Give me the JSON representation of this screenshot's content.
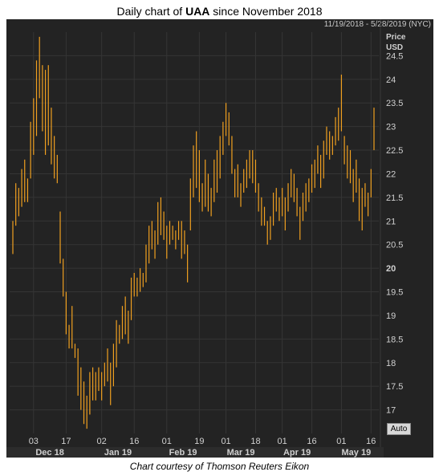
{
  "title": {
    "prefix": "Daily chart of ",
    "ticker": "UAA",
    "suffix": " since November 2018"
  },
  "date_range": "11/19/2018 - 5/28/2019 (NYC)",
  "credit": "Chart courtesy of Thomson Reuters Eikon",
  "auto_label": "Auto",
  "colors": {
    "background": "#232323",
    "bars": "#f0a020",
    "grid": "#353535",
    "axis_text": "#d0d0d0"
  },
  "chart_data": {
    "type": "bar",
    "subtype": "ohlc",
    "ylabel": "Price USD",
    "ylim": [
      16.5,
      25.0
    ],
    "yticks": [
      17,
      17.5,
      18,
      18.5,
      19,
      19.5,
      20,
      20.5,
      21,
      21.5,
      22,
      22.5,
      23,
      23.5,
      24,
      24.5
    ],
    "y_emphasized_tick": 20,
    "x_tick_labels": [
      "03",
      "17",
      "02",
      "16",
      "01",
      "19",
      "01",
      "18",
      "01",
      "16",
      "01",
      "16"
    ],
    "x_month_labels": [
      "Dec 18",
      "Jan 19",
      "Feb 19",
      "Mar 19",
      "Apr 19",
      "May 19"
    ],
    "grid": true,
    "series": [
      {
        "values": [
          [
            21.0,
            20.3
          ],
          [
            21.8,
            20.9
          ],
          [
            21.7,
            21.1
          ],
          [
            22.1,
            21.3
          ],
          [
            22.3,
            21.4
          ],
          [
            21.9,
            21.4
          ],
          [
            23.1,
            21.9
          ],
          [
            23.6,
            22.4
          ],
          [
            24.4,
            22.8
          ],
          [
            24.9,
            23.6
          ],
          [
            24.3,
            22.9
          ],
          [
            24.2,
            22.4
          ],
          [
            24.3,
            22.6
          ],
          [
            23.4,
            22.2
          ],
          [
            22.8,
            21.9
          ],
          [
            22.4,
            21.8
          ],
          [
            21.2,
            20.1
          ],
          [
            20.2,
            19.4
          ],
          [
            19.5,
            18.6
          ],
          [
            18.8,
            18.3
          ],
          [
            19.2,
            18.3
          ],
          [
            18.4,
            18.1
          ],
          [
            18.3,
            17.3
          ],
          [
            17.9,
            17.0
          ],
          [
            17.6,
            16.7
          ],
          [
            17.3,
            16.6
          ],
          [
            17.8,
            16.9
          ],
          [
            17.9,
            17.2
          ],
          [
            17.8,
            17.2
          ],
          [
            17.9,
            17.4
          ],
          [
            17.8,
            17.2
          ],
          [
            18.0,
            17.5
          ],
          [
            18.3,
            17.6
          ],
          [
            18.0,
            17.1
          ],
          [
            18.4,
            17.5
          ],
          [
            18.9,
            17.9
          ],
          [
            18.8,
            18.4
          ],
          [
            19.2,
            18.5
          ],
          [
            19.4,
            18.6
          ],
          [
            19.1,
            18.4
          ],
          [
            19.8,
            18.9
          ],
          [
            19.9,
            19.4
          ],
          [
            19.8,
            19.4
          ],
          [
            20.0,
            19.5
          ],
          [
            19.9,
            19.6
          ],
          [
            20.5,
            19.7
          ],
          [
            20.9,
            20.1
          ],
          [
            21.0,
            20.4
          ],
          [
            20.8,
            20.2
          ],
          [
            21.4,
            20.5
          ],
          [
            21.5,
            20.7
          ],
          [
            21.2,
            20.6
          ],
          [
            20.9,
            20.2
          ],
          [
            21.0,
            20.5
          ],
          [
            20.9,
            20.6
          ],
          [
            20.8,
            20.4
          ],
          [
            21.0,
            20.6
          ],
          [
            21.0,
            20.2
          ],
          [
            20.8,
            20.3
          ],
          [
            20.5,
            19.7
          ],
          [
            21.9,
            20.8
          ],
          [
            22.6,
            21.5
          ],
          [
            22.9,
            21.7
          ],
          [
            22.5,
            21.4
          ],
          [
            21.8,
            21.2
          ],
          [
            22.3,
            21.3
          ],
          [
            22.0,
            21.2
          ],
          [
            21.7,
            21.1
          ],
          [
            22.3,
            21.4
          ],
          [
            22.5,
            21.6
          ],
          [
            22.8,
            21.9
          ],
          [
            23.1,
            22.4
          ],
          [
            23.5,
            22.8
          ],
          [
            23.3,
            22.6
          ],
          [
            22.8,
            22.0
          ],
          [
            22.1,
            21.5
          ],
          [
            22.2,
            21.5
          ],
          [
            21.8,
            21.3
          ],
          [
            22.1,
            21.6
          ],
          [
            22.3,
            21.7
          ],
          [
            22.5,
            21.9
          ],
          [
            22.5,
            21.8
          ],
          [
            22.3,
            21.6
          ],
          [
            21.8,
            21.2
          ],
          [
            21.5,
            20.9
          ],
          [
            21.3,
            20.9
          ],
          [
            21.0,
            20.5
          ],
          [
            21.1,
            20.6
          ],
          [
            21.6,
            20.9
          ],
          [
            21.7,
            21.2
          ],
          [
            21.5,
            21.0
          ],
          [
            21.7,
            21.1
          ],
          [
            21.5,
            20.8
          ],
          [
            21.8,
            21.2
          ],
          [
            22.1,
            21.5
          ],
          [
            22.0,
            21.4
          ],
          [
            21.7,
            21.1
          ],
          [
            21.3,
            20.6
          ],
          [
            21.6,
            21.0
          ],
          [
            21.8,
            21.2
          ],
          [
            21.9,
            21.4
          ],
          [
            22.2,
            21.6
          ],
          [
            22.3,
            21.7
          ],
          [
            22.6,
            22.0
          ],
          [
            22.4,
            21.7
          ],
          [
            22.7,
            21.9
          ],
          [
            23.0,
            22.4
          ],
          [
            22.9,
            22.3
          ],
          [
            22.8,
            22.4
          ],
          [
            23.2,
            22.6
          ],
          [
            23.4,
            22.7
          ],
          [
            24.1,
            22.9
          ],
          [
            22.8,
            22.2
          ],
          [
            22.6,
            21.9
          ],
          [
            22.5,
            21.8
          ],
          [
            22.1,
            21.4
          ],
          [
            22.3,
            21.6
          ],
          [
            21.9,
            21.0
          ],
          [
            21.7,
            20.8
          ],
          [
            21.8,
            21.3
          ],
          [
            21.6,
            21.1
          ],
          [
            22.1,
            21.5
          ],
          [
            23.4,
            22.5
          ]
        ]
      }
    ]
  }
}
